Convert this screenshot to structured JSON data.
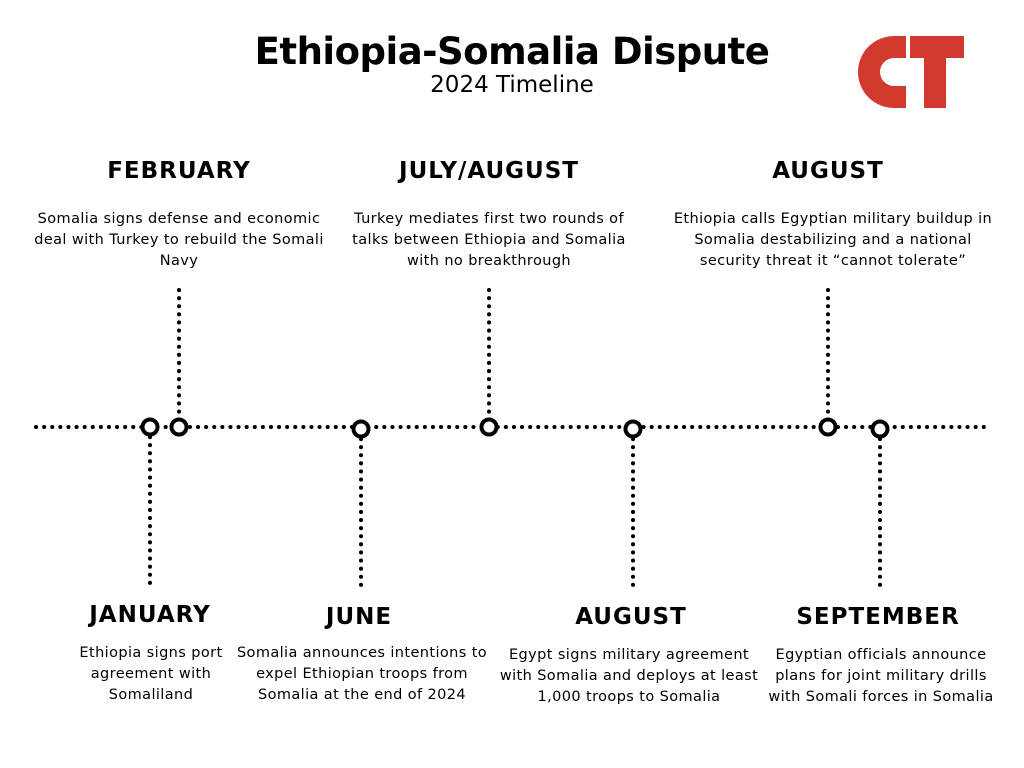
{
  "header": {
    "title": "Ethiopia-Somalia Dispute",
    "subtitle": "2024 Timeline"
  },
  "logo": {
    "text": "CT",
    "color": "#d23a2f"
  },
  "colors": {
    "line": "#000000",
    "accent": "#d23a2f"
  },
  "events_top": [
    {
      "month": "FEBRUARY",
      "description": "Somalia signs defense and economic deal with Turkey to rebuild the Somali Navy"
    },
    {
      "month": "JULY/AUGUST",
      "description": "Turkey mediates first two rounds of talks between Ethiopia and Somalia with no breakthrough"
    },
    {
      "month": "AUGUST",
      "description": "Ethiopia calls Egyptian military buildup in Somalia destabilizing and a national security threat it “cannot tolerate”"
    }
  ],
  "events_bottom": [
    {
      "month": "JANUARY",
      "description": "Ethiopia signs port agreement with Somaliland"
    },
    {
      "month": "JUNE",
      "description": "Somalia announces intentions to expel Ethiopian troops from Somalia at the end of 2024"
    },
    {
      "month": "AUGUST",
      "description": "Egypt signs military agreement with Somalia and deploys at least 1,000 troops to Somalia"
    },
    {
      "month": "SEPTEMBER",
      "description": "Egyptian officials announce plans for joint military drills with Somali forces in Somalia"
    }
  ]
}
